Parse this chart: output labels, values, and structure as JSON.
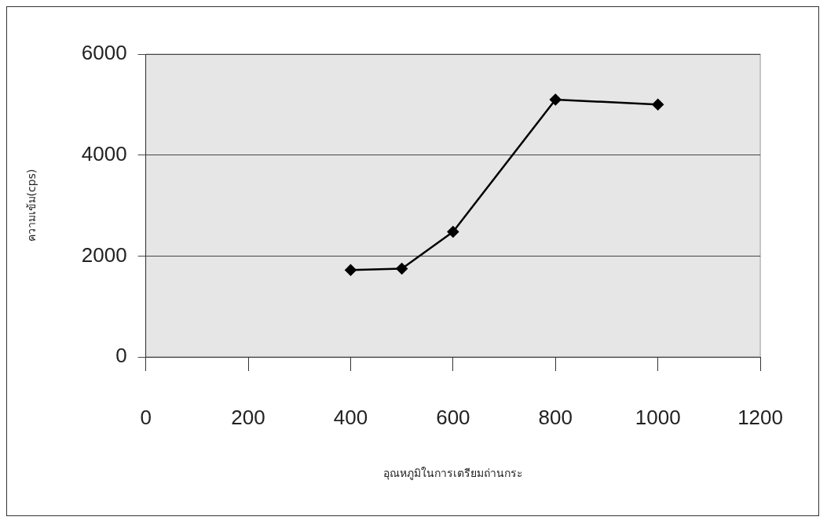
{
  "chart_data": {
    "type": "line",
    "xlabel": "อุณหภูมิในการเตรียมถ่านกระ",
    "ylabel": "ความเข้ม(cps)",
    "x": [
      400,
      500,
      600,
      800,
      1000
    ],
    "series": [
      {
        "color": "#000000",
        "values": [
          1720,
          1750,
          2480,
          5100,
          5000
        ]
      }
    ],
    "xlim": [
      0,
      1200
    ],
    "xticks": [
      0,
      200,
      400,
      600,
      800,
      1000,
      1200
    ],
    "ylim": [
      0,
      6000
    ],
    "yticks": [
      0,
      2000,
      4000,
      6000
    ],
    "grid": "y",
    "legend": false,
    "marker": "diamond",
    "line_style": "solid"
  }
}
